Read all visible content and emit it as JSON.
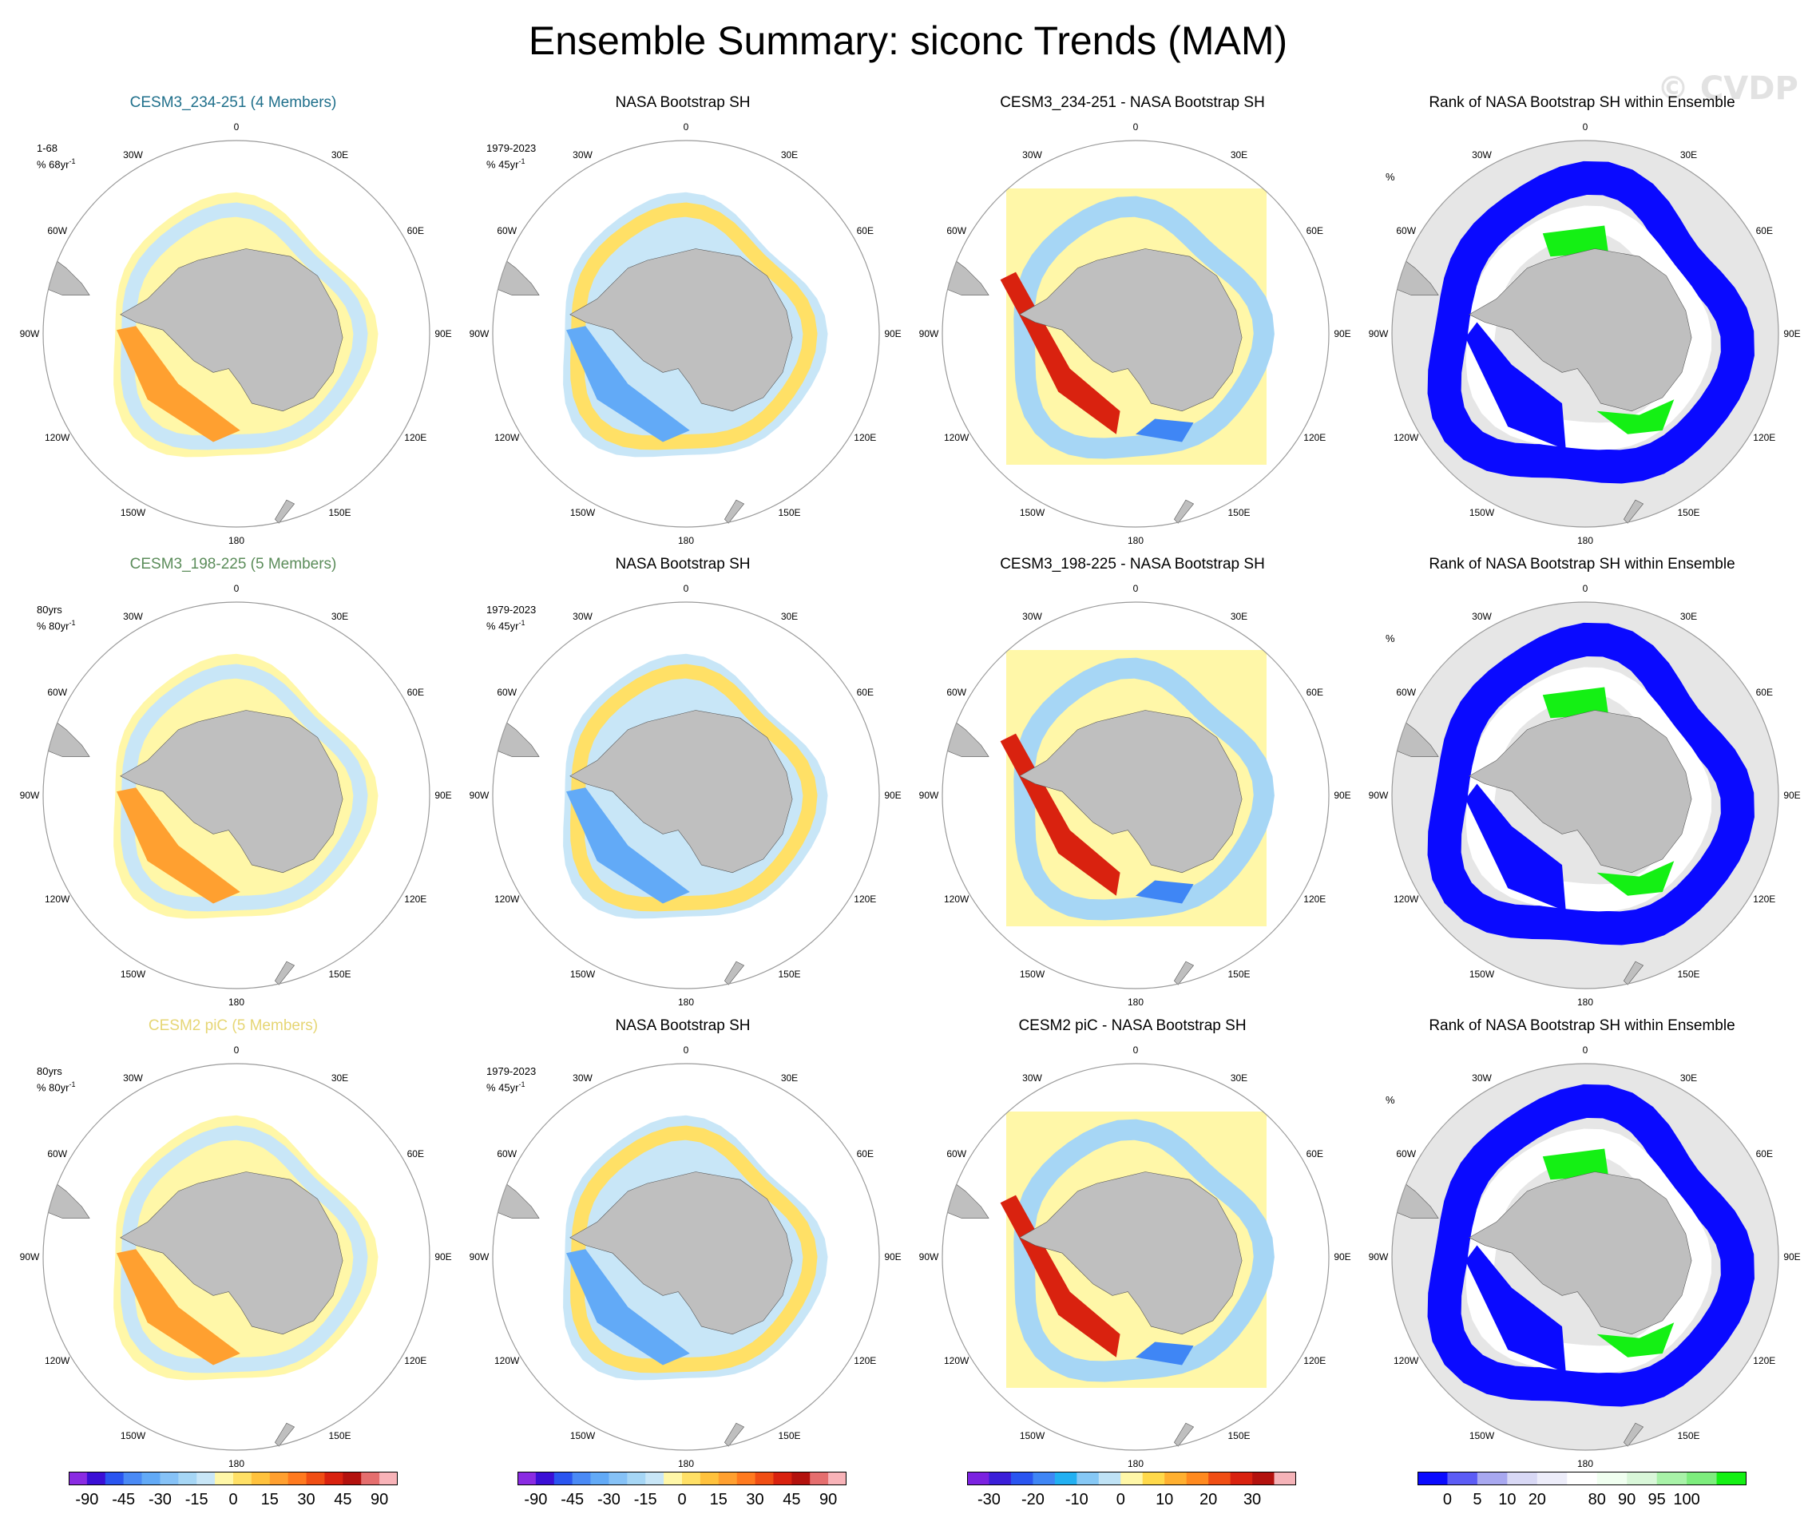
{
  "figure": {
    "title": "Ensemble Summary: siconc Trends (MAM)",
    "watermark": "© CVDP"
  },
  "colors": {
    "land": "#bfbfbf",
    "rank_background": "#e6e6e6",
    "row1_model_title": "#1f6f8b",
    "row2_model_title": "#5b8c5a",
    "row3_model_title": "#e6d675"
  },
  "longitude_labels": [
    "0",
    "30E",
    "60E",
    "90E",
    "120E",
    "150E",
    "180",
    "150W",
    "120W",
    "90W",
    "60W",
    "30W"
  ],
  "rows": [
    {
      "panels": [
        {
          "kind": "model",
          "title": "CESM3_234-251 (4 Members)",
          "title_color": "#1f6f8b",
          "period": "1-68",
          "units_text": "% 68yr",
          "units_sup": "-1"
        },
        {
          "kind": "obs",
          "title": "NASA Bootstrap SH",
          "period": "1979-2023",
          "units_text": "% 45yr",
          "units_sup": "-1"
        },
        {
          "kind": "diff",
          "title": "CESM3_234-251 - NASA Bootstrap SH"
        },
        {
          "kind": "rank",
          "title": "Rank of NASA Bootstrap SH within Ensemble",
          "units_text": "%"
        }
      ]
    },
    {
      "panels": [
        {
          "kind": "model",
          "title": "CESM3_198-225 (5 Members)",
          "title_color": "#5b8c5a",
          "period": "80yrs",
          "units_text": "% 80yr",
          "units_sup": "-1"
        },
        {
          "kind": "obs",
          "title": "NASA Bootstrap SH",
          "period": "1979-2023",
          "units_text": "% 45yr",
          "units_sup": "-1"
        },
        {
          "kind": "diff",
          "title": "CESM3_198-225 - NASA Bootstrap SH"
        },
        {
          "kind": "rank",
          "title": "Rank of NASA Bootstrap SH within Ensemble",
          "units_text": "%"
        }
      ]
    },
    {
      "panels": [
        {
          "kind": "model",
          "title": "CESM2 piC (5 Members)",
          "title_color": "#e6d675",
          "period": "80yrs",
          "units_text": "% 80yr",
          "units_sup": "-1"
        },
        {
          "kind": "obs",
          "title": "NASA Bootstrap SH",
          "period": "1979-2023",
          "units_text": "% 45yr",
          "units_sup": "-1"
        },
        {
          "kind": "diff",
          "title": "CESM2 piC - NASA Bootstrap SH"
        },
        {
          "kind": "rank",
          "title": "Rank of NASA Bootstrap SH within Ensemble",
          "units_text": "%"
        }
      ]
    }
  ],
  "colorbars": [
    {
      "name": "trend-colorbar-1",
      "colors": [
        "#8a2be2",
        "#3b0fd6",
        "#2a55f0",
        "#4a8af5",
        "#62aaf7",
        "#86c2f7",
        "#a6d6f5",
        "#c8e6f7",
        "#fff7a8",
        "#ffe066",
        "#ffc23d",
        "#ffa030",
        "#ff7a1f",
        "#f04e14",
        "#d9220f",
        "#b3120e",
        "#e56e6e",
        "#f8b3b8"
      ],
      "labels": [
        "-90",
        "-45",
        "-30",
        "-15",
        "0",
        "15",
        "30",
        "45",
        "90"
      ],
      "label_boundaries": [
        1,
        3,
        5,
        7,
        9,
        11,
        13,
        15,
        17
      ]
    },
    {
      "name": "trend-colorbar-2",
      "colors": [
        "#8a2be2",
        "#3b0fd6",
        "#2a55f0",
        "#4a8af5",
        "#62aaf7",
        "#86c2f7",
        "#a6d6f5",
        "#c8e6f7",
        "#fff7a8",
        "#ffe066",
        "#ffc23d",
        "#ffa030",
        "#ff7a1f",
        "#f04e14",
        "#d9220f",
        "#b3120e",
        "#e56e6e",
        "#f8b3b8"
      ],
      "labels": [
        "-90",
        "-45",
        "-30",
        "-15",
        "0",
        "15",
        "30",
        "45",
        "90"
      ],
      "label_boundaries": [
        1,
        3,
        5,
        7,
        9,
        11,
        13,
        15,
        17
      ]
    },
    {
      "name": "difference-colorbar",
      "colors": [
        "#7b22e0",
        "#3b1fd9",
        "#2a55f0",
        "#3f86f5",
        "#22b0f2",
        "#86c8f5",
        "#bfe2f5",
        "#fff7a8",
        "#ffd94a",
        "#ffb030",
        "#ff8a1f",
        "#f04e14",
        "#d9220f",
        "#b3120e",
        "#f5b3b8"
      ],
      "labels": [
        "-30",
        "-20",
        "-10",
        "0",
        "10",
        "20",
        "30"
      ],
      "label_boundaries": [
        1,
        3,
        5,
        7,
        9,
        11,
        13
      ]
    },
    {
      "name": "rank-colorbar",
      "colors": [
        "#0a0aff",
        "#5c5cf5",
        "#a8a8f0",
        "#d8d8f5",
        "#ededfa",
        "#ffffff",
        "#f0fff0",
        "#d9f7d9",
        "#a8f2a8",
        "#7ded7d",
        "#14f014"
      ],
      "labels": [
        "0",
        "5",
        "10",
        "20",
        "80",
        "90",
        "95",
        "100"
      ],
      "label_boundaries": [
        1,
        2,
        3,
        4,
        6,
        7,
        8,
        9
      ]
    }
  ]
}
